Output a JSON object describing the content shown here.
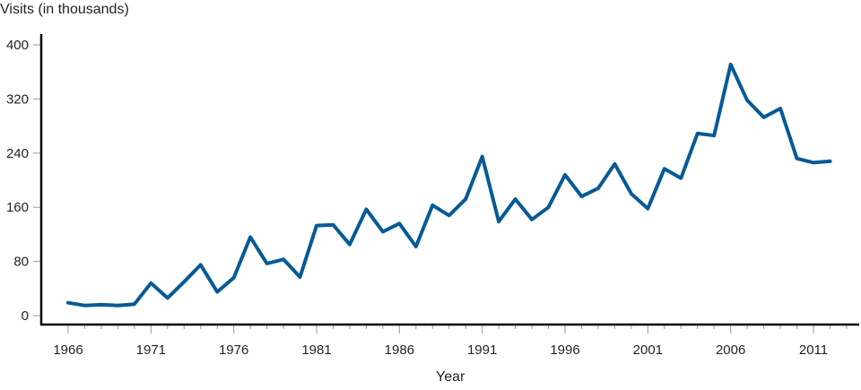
{
  "chart_data": {
    "type": "line",
    "title": "",
    "xlabel": "Year",
    "ylabel": "Visits (in thousands)",
    "ylim": [
      0,
      400
    ],
    "yticks": [
      0,
      80,
      160,
      240,
      320,
      400
    ],
    "xticks": [
      1966,
      1971,
      1976,
      1981,
      1986,
      1991,
      1996,
      2001,
      2006,
      2011
    ],
    "grid": false,
    "legend": null,
    "x": [
      1966,
      1967,
      1968,
      1969,
      1970,
      1971,
      1972,
      1973,
      1974,
      1975,
      1976,
      1977,
      1978,
      1979,
      1980,
      1981,
      1982,
      1983,
      1984,
      1985,
      1986,
      1987,
      1988,
      1989,
      1990,
      1991,
      1992,
      1993,
      1994,
      1995,
      1996,
      1997,
      1998,
      1999,
      2000,
      2001,
      2002,
      2003,
      2004,
      2005,
      2006,
      2007,
      2008,
      2009,
      2010,
      2011,
      2012
    ],
    "series": [
      {
        "name": "Visits",
        "color": "#065a96",
        "values": [
          19,
          15,
          16,
          15,
          17,
          48,
          26,
          50,
          75,
          35,
          56,
          116,
          77,
          83,
          57,
          133,
          134,
          105,
          157,
          124,
          136,
          102,
          163,
          148,
          172,
          235,
          139,
          172,
          142,
          160,
          208,
          176,
          188,
          224,
          180,
          158,
          217,
          203,
          269,
          266,
          371,
          318,
          293,
          306,
          232,
          226,
          228
        ]
      }
    ]
  },
  "labels": {
    "y_axis": "Visits (in thousands)",
    "x_axis": "Year"
  }
}
